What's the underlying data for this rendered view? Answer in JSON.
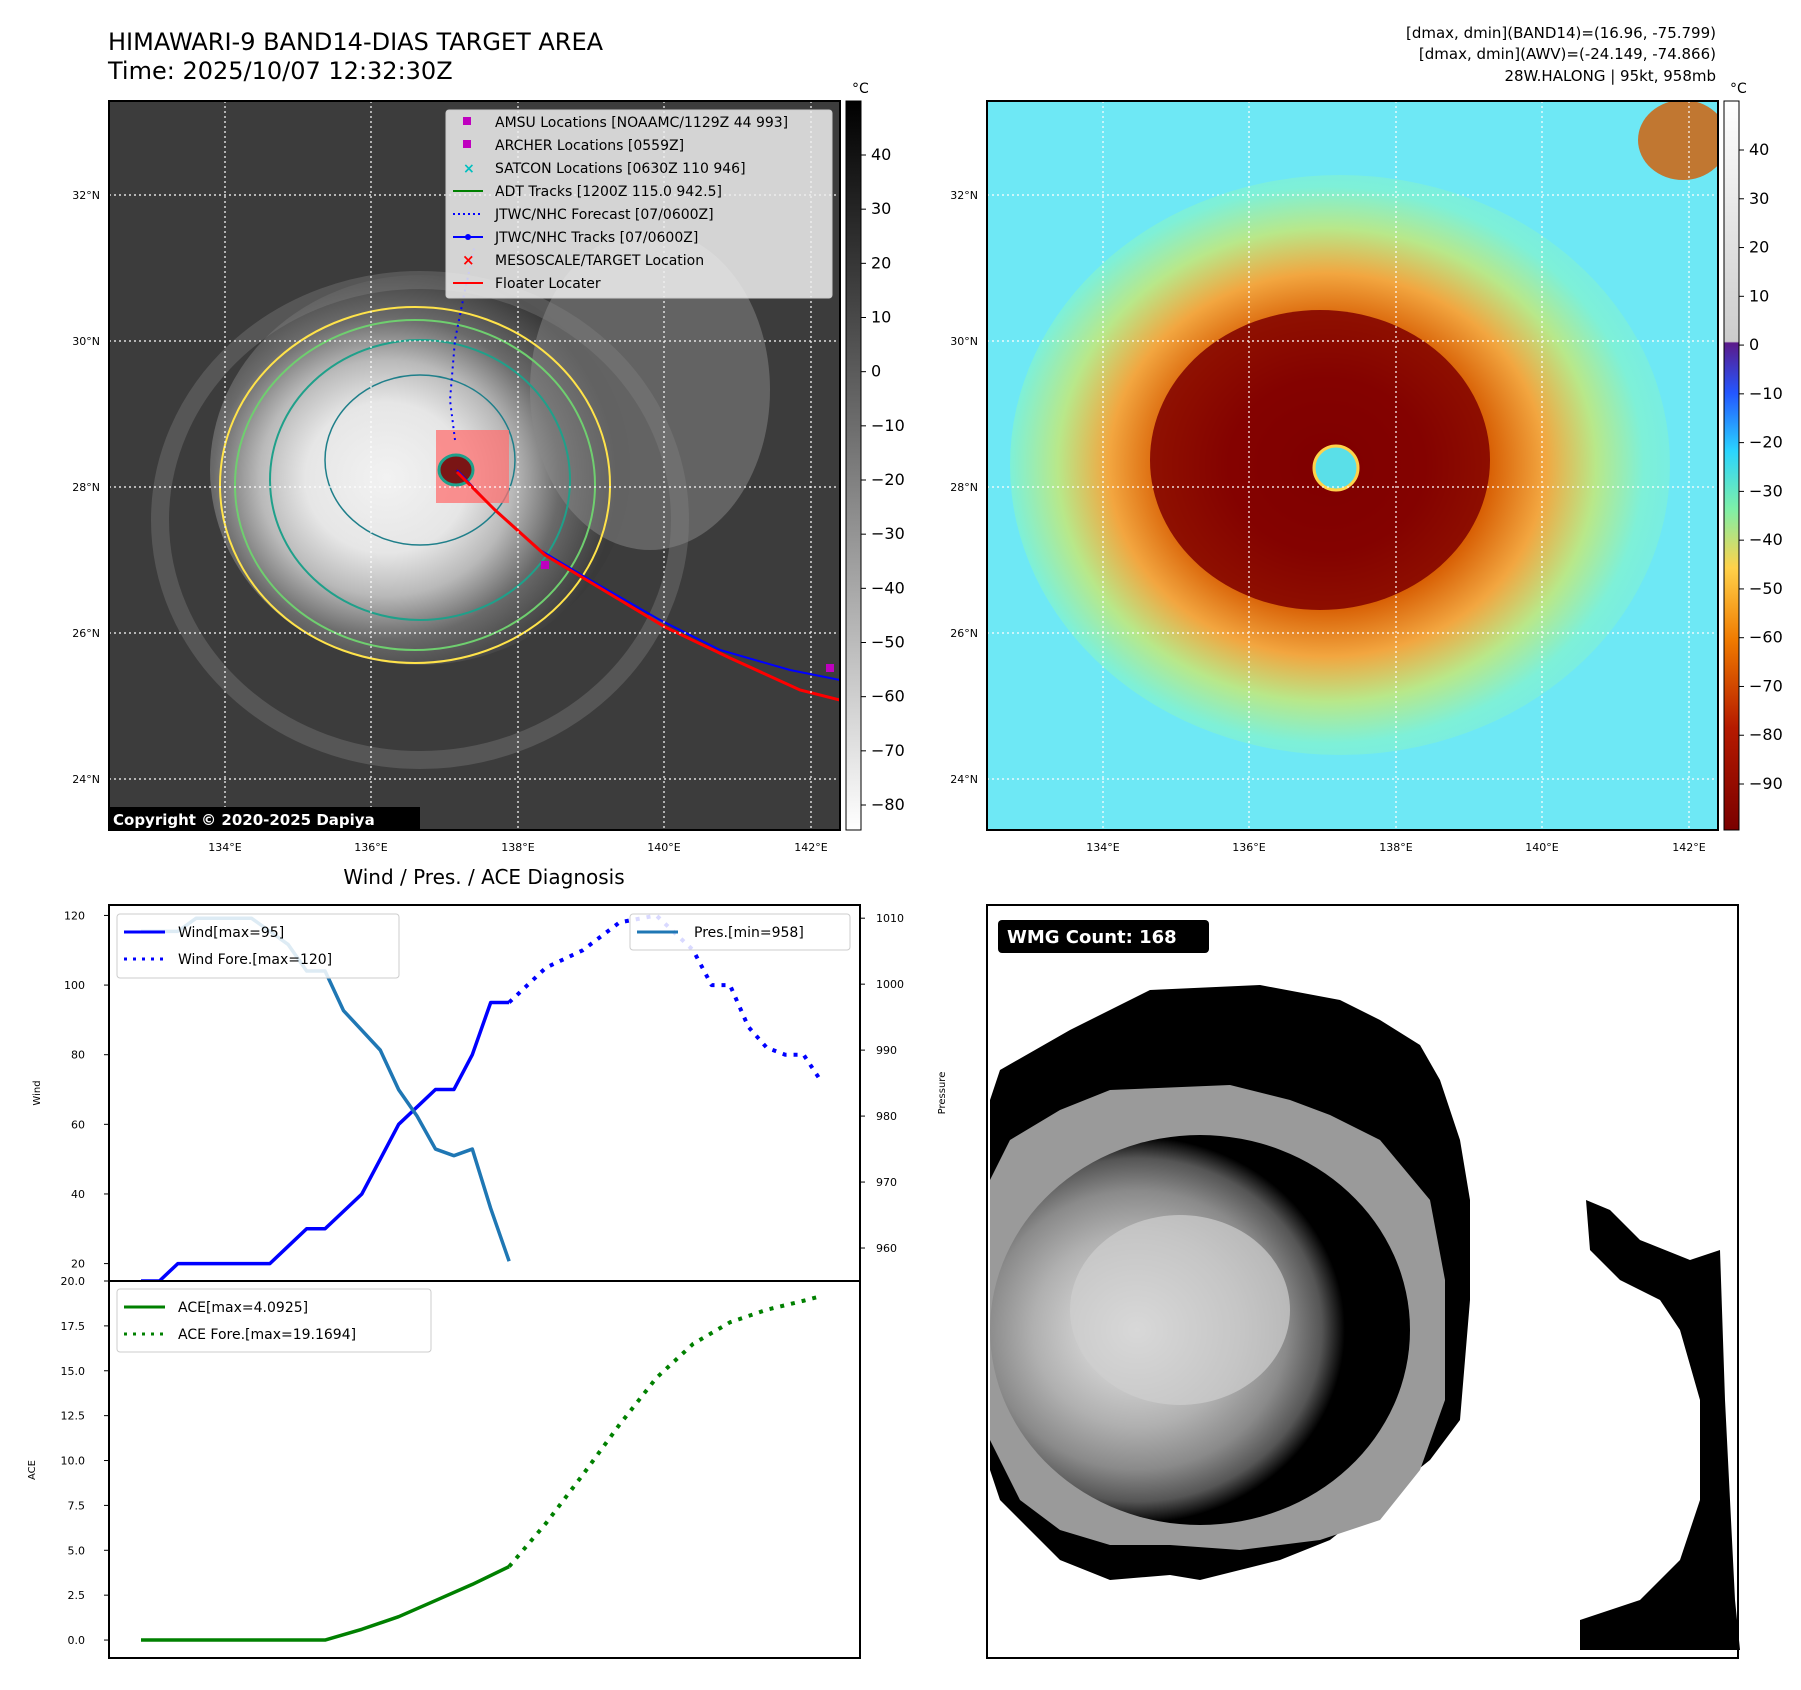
{
  "header": {
    "title": "HIMAWARI-9 BAND14-DIAS TARGET AREA",
    "time": "Time: 2025/10/07 12:32:30Z",
    "dmax_band14": "[dmax, dmin](BAND14)=(16.96, -75.799)",
    "dmax_awv": "[dmax, dmin](AWV)=(-24.149, -74.866)",
    "storm": "28W.HALONG | 95kt, 958mb"
  },
  "map_left": {
    "copyright": "Copyright © 2020-2025 Dapiya",
    "lat_ticks": [
      "32°N",
      "30°N",
      "28°N",
      "26°N",
      "24°N"
    ],
    "lon_ticks": [
      "134°E",
      "136°E",
      "138°E",
      "140°E",
      "142°E"
    ],
    "colorbar_unit": "°C",
    "colorbar_ticks": [
      "40",
      "30",
      "20",
      "10",
      "0",
      "−10",
      "−20",
      "−30",
      "−40",
      "−50",
      "−60",
      "−70",
      "−80"
    ],
    "legend": [
      {
        "label": "AMSU Locations [NOAAMC/1129Z 44 993]",
        "color": "#bf00bf",
        "symbol": "square"
      },
      {
        "label": "ARCHER Locations [0559Z]",
        "color": "#bf00bf",
        "symbol": "square"
      },
      {
        "label": "SATCON Locations [0630Z 110 946]",
        "color": "#00bfbf",
        "symbol": "x"
      },
      {
        "label": "ADT Tracks [1200Z 115.0 942.5]",
        "color": "#008000",
        "symbol": "line"
      },
      {
        "label": "JTWC/NHC Forecast [07/0600Z]",
        "color": "#0000ff",
        "symbol": "dotted"
      },
      {
        "label": "JTWC/NHC Tracks [07/0600Z]",
        "color": "#0000ff",
        "symbol": "line-dot"
      },
      {
        "label": "MESOSCALE/TARGET Location",
        "color": "#ff0000",
        "symbol": "x"
      },
      {
        "label": "Floater Locater",
        "color": "#ff0000",
        "symbol": "line"
      }
    ]
  },
  "map_right": {
    "lat_ticks": [
      "32°N",
      "30°N",
      "28°N",
      "26°N",
      "24°N"
    ],
    "lon_ticks": [
      "134°E",
      "136°E",
      "138°E",
      "140°E",
      "142°E"
    ],
    "colorbar_unit": "°C",
    "colorbar_ticks": [
      "40",
      "30",
      "20",
      "10",
      "0",
      "−10",
      "−20",
      "−30",
      "−40",
      "−50",
      "−60",
      "−70",
      "−80",
      "−90"
    ]
  },
  "wmg": {
    "label": "WMG Count: 168"
  },
  "chart_data": [
    {
      "type": "line",
      "title": "Wind / Pres. / ACE Diagnosis",
      "xlabel": "",
      "ylabel": "Wind",
      "ylabel_right": "Pressure",
      "ylim": [
        15,
        123
      ],
      "ylim_right": [
        955,
        1012
      ],
      "yticks": [
        20,
        40,
        60,
        80,
        100,
        120
      ],
      "yticks_right": [
        960,
        970,
        980,
        990,
        1000,
        1010
      ],
      "x": [
        0,
        1,
        2,
        3,
        4,
        5,
        6,
        7,
        8,
        9,
        10,
        11,
        12,
        13,
        14,
        15,
        16,
        17,
        18,
        19,
        20,
        21,
        22,
        23,
        24,
        25,
        26,
        27,
        28,
        29,
        30,
        31,
        32,
        33,
        34,
        35,
        36,
        37
      ],
      "series": [
        {
          "name": "Wind[max=95]",
          "color": "#0000ff",
          "style": "solid",
          "axis": "left",
          "x": [
            0,
            1,
            2,
            3,
            4,
            5,
            6,
            7,
            8,
            9,
            10,
            11,
            12,
            13,
            14,
            15,
            16,
            17,
            18,
            19,
            20
          ],
          "values": [
            15,
            15,
            20,
            20,
            20,
            20,
            20,
            20,
            25,
            30,
            30,
            35,
            40,
            50,
            60,
            65,
            70,
            70,
            80,
            95,
            95
          ]
        },
        {
          "name": "Wind Fore.[max=120]",
          "color": "#0000ff",
          "style": "dotted",
          "axis": "left",
          "x": [
            20,
            22,
            24,
            26,
            28,
            30,
            31,
            32,
            33,
            34,
            35,
            36,
            37
          ],
          "values": [
            95,
            105,
            110,
            118,
            120,
            110,
            100,
            100,
            88,
            82,
            80,
            80,
            72
          ]
        },
        {
          "name": "Pres.[min=958]",
          "color": "#1f77b4",
          "style": "solid",
          "axis": "right",
          "x": [
            0,
            1,
            2,
            3,
            4,
            5,
            6,
            7,
            8,
            9,
            10,
            11,
            12,
            13,
            14,
            15,
            16,
            17,
            18,
            19,
            20
          ],
          "values": [
            1008,
            1008,
            1008,
            1010,
            1010,
            1010,
            1010,
            1008,
            1006,
            1002,
            1002,
            996,
            993,
            990,
            984,
            980,
            975,
            974,
            975,
            966,
            958
          ]
        }
      ]
    },
    {
      "type": "line",
      "title": "",
      "xlabel": "",
      "ylabel": "ACE",
      "ylim": [
        -1,
        20
      ],
      "yticks": [
        0.0,
        2.5,
        5.0,
        7.5,
        10.0,
        12.5,
        15.0,
        17.5,
        20.0
      ],
      "ytick_labels": [
        "0.0",
        "2.5",
        "5.0",
        "7.5",
        "10.0",
        "12.5",
        "15.0",
        "17.5",
        "20.0"
      ],
      "series": [
        {
          "name": "ACE[max=4.0925]",
          "color": "#008000",
          "style": "solid",
          "x": [
            0,
            2,
            4,
            6,
            8,
            10,
            12,
            14,
            16,
            18,
            20
          ],
          "values": [
            0,
            0,
            0,
            0,
            0,
            0,
            0.6,
            1.3,
            2.2,
            3.1,
            4.09
          ]
        },
        {
          "name": "ACE Fore.[max=19.1694]",
          "color": "#008000",
          "style": "dotted",
          "x": [
            20,
            22,
            24,
            26,
            28,
            30,
            32,
            34,
            36,
            37
          ],
          "values": [
            4.09,
            6.5,
            9.2,
            12.0,
            14.6,
            16.5,
            17.7,
            18.4,
            18.9,
            19.17
          ]
        }
      ]
    }
  ]
}
